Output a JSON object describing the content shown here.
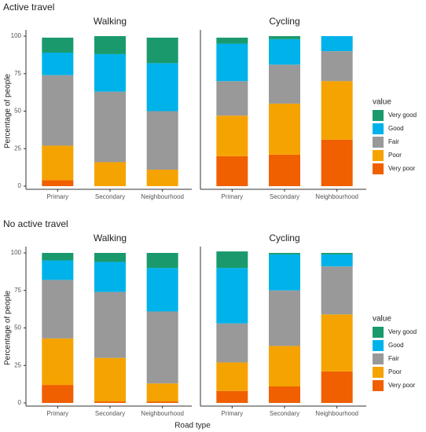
{
  "chart_data": [
    {
      "type": "stacked-bar",
      "title": "Active travel",
      "y_label": "Percentage of people",
      "legend_title": "value",
      "ylim": [
        0,
        100
      ],
      "yticks": [
        0,
        25,
        50,
        75,
        100
      ],
      "series": [
        {
          "name": "Very good",
          "color": "#1a9a6c"
        },
        {
          "name": "Good",
          "color": "#00b2ea"
        },
        {
          "name": "Fair",
          "color": "#999999"
        },
        {
          "name": "Poor",
          "color": "#f5a300"
        },
        {
          "name": "Very poor",
          "color": "#f05f00"
        }
      ],
      "facets": [
        {
          "title": "Walking",
          "categories": [
            "Primary",
            "Secondary",
            "Neighbourhood"
          ],
          "values": [
            [
              10,
              12,
              17
            ],
            [
              15,
              25,
              32
            ],
            [
              47,
              47,
              39
            ],
            [
              23,
              16,
              11
            ],
            [
              4,
              0,
              0
            ]
          ]
        },
        {
          "title": "Cycling",
          "categories": [
            "Primary",
            "Secondary",
            "Neighbourhood"
          ],
          "values": [
            [
              4,
              2,
              0
            ],
            [
              25,
              17,
              10
            ],
            [
              23,
              26,
              20
            ],
            [
              27,
              34,
              39
            ],
            [
              20,
              21,
              31
            ]
          ]
        }
      ]
    },
    {
      "type": "stacked-bar",
      "title": "No active travel",
      "y_label": "Percentage of people",
      "x_label": "Road type",
      "legend_title": "value",
      "ylim": [
        0,
        100
      ],
      "yticks": [
        0,
        25,
        50,
        75,
        100
      ],
      "series": [
        {
          "name": "Very good",
          "color": "#1a9a6c"
        },
        {
          "name": "Good",
          "color": "#00b2ea"
        },
        {
          "name": "Fair",
          "color": "#999999"
        },
        {
          "name": "Poor",
          "color": "#f5a300"
        },
        {
          "name": "Very poor",
          "color": "#f05f00"
        }
      ],
      "facets": [
        {
          "title": "Walking",
          "categories": [
            "Primary",
            "Secondary",
            "Neighbourhood"
          ],
          "values": [
            [
              5,
              6,
              10
            ],
            [
              13,
              20,
              29
            ],
            [
              39,
              44,
              48
            ],
            [
              31,
              29,
              12
            ],
            [
              12,
              1,
              1
            ]
          ]
        },
        {
          "title": "Cycling",
          "categories": [
            "Primary",
            "Secondary",
            "Neighbourhood"
          ],
          "values": [
            [
              11,
              1,
              1
            ],
            [
              37,
              24,
              8
            ],
            [
              26,
              37,
              32
            ],
            [
              19,
              27,
              38
            ],
            [
              8,
              11,
              21
            ]
          ]
        }
      ]
    }
  ]
}
